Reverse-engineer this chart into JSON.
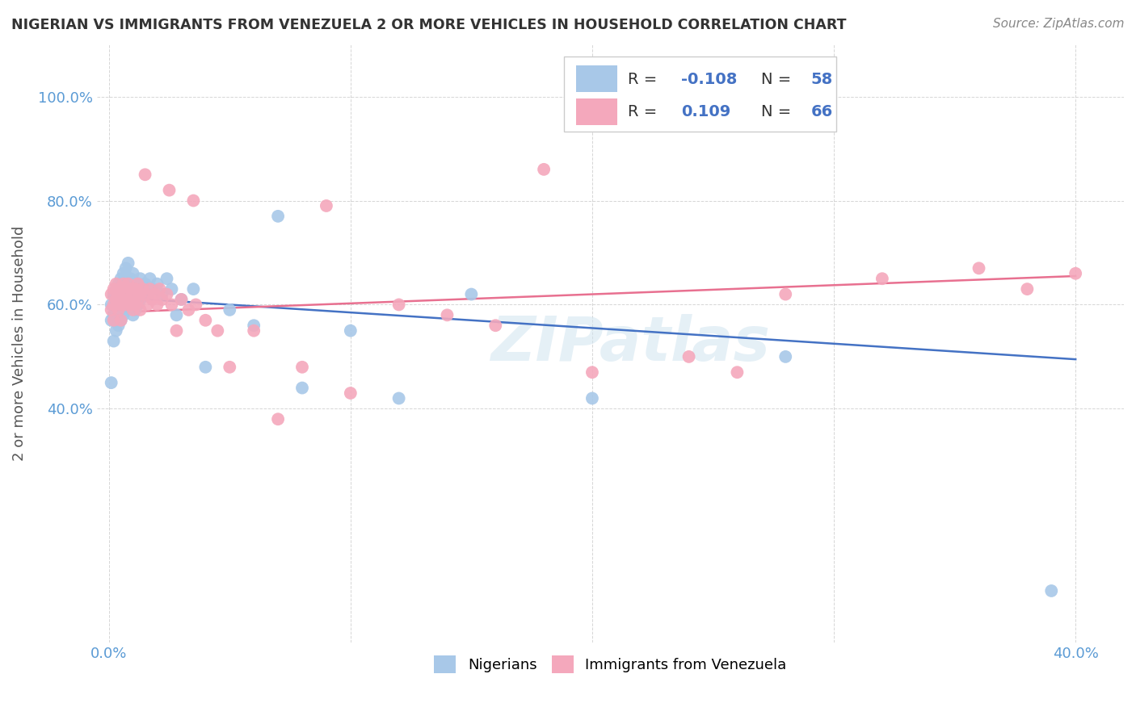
{
  "title": "NIGERIAN VS IMMIGRANTS FROM VENEZUELA 2 OR MORE VEHICLES IN HOUSEHOLD CORRELATION CHART",
  "source": "Source: ZipAtlas.com",
  "ylabel": "2 or more Vehicles in Household",
  "blue_color": "#a8c8e8",
  "pink_color": "#f4a8bc",
  "blue_line_color": "#4472c4",
  "pink_line_color": "#e87090",
  "xlim": [
    -0.005,
    0.42
  ],
  "ylim": [
    -0.05,
    1.1
  ],
  "nigerians_x": [
    0.001,
    0.001,
    0.001,
    0.002,
    0.002,
    0.002,
    0.003,
    0.003,
    0.003,
    0.004,
    0.004,
    0.004,
    0.005,
    0.005,
    0.005,
    0.006,
    0.006,
    0.006,
    0.007,
    0.007,
    0.007,
    0.008,
    0.008,
    0.008,
    0.009,
    0.009,
    0.01,
    0.01,
    0.01,
    0.011,
    0.011,
    0.012,
    0.012,
    0.013,
    0.013,
    0.014,
    0.015,
    0.016,
    0.017,
    0.018,
    0.02,
    0.022,
    0.024,
    0.026,
    0.028,
    0.03,
    0.035,
    0.04,
    0.05,
    0.06,
    0.07,
    0.08,
    0.1,
    0.12,
    0.15,
    0.2,
    0.28,
    0.39
  ],
  "nigerians_y": [
    0.6,
    0.57,
    0.45,
    0.62,
    0.58,
    0.53,
    0.63,
    0.59,
    0.55,
    0.64,
    0.6,
    0.56,
    0.65,
    0.61,
    0.57,
    0.66,
    0.62,
    0.58,
    0.67,
    0.63,
    0.59,
    0.68,
    0.64,
    0.6,
    0.65,
    0.61,
    0.66,
    0.62,
    0.58,
    0.63,
    0.59,
    0.64,
    0.6,
    0.65,
    0.61,
    0.63,
    0.64,
    0.62,
    0.65,
    0.63,
    0.64,
    0.62,
    0.65,
    0.63,
    0.58,
    0.61,
    0.63,
    0.48,
    0.59,
    0.56,
    0.77,
    0.44,
    0.55,
    0.42,
    0.62,
    0.42,
    0.5,
    0.05
  ],
  "venezuela_x": [
    0.001,
    0.001,
    0.002,
    0.002,
    0.002,
    0.003,
    0.003,
    0.004,
    0.004,
    0.005,
    0.005,
    0.005,
    0.006,
    0.006,
    0.007,
    0.007,
    0.008,
    0.008,
    0.009,
    0.009,
    0.01,
    0.01,
    0.011,
    0.011,
    0.012,
    0.012,
    0.013,
    0.013,
    0.014,
    0.015,
    0.016,
    0.017,
    0.018,
    0.019,
    0.02,
    0.021,
    0.022,
    0.024,
    0.026,
    0.028,
    0.03,
    0.033,
    0.036,
    0.04,
    0.045,
    0.05,
    0.06,
    0.07,
    0.08,
    0.1,
    0.12,
    0.14,
    0.16,
    0.2,
    0.24,
    0.28,
    0.32,
    0.36,
    0.38,
    0.4,
    0.015,
    0.025,
    0.035,
    0.09,
    0.18,
    0.26
  ],
  "venezuela_y": [
    0.62,
    0.59,
    0.63,
    0.6,
    0.57,
    0.64,
    0.61,
    0.62,
    0.59,
    0.63,
    0.6,
    0.57,
    0.64,
    0.61,
    0.63,
    0.6,
    0.64,
    0.61,
    0.63,
    0.6,
    0.62,
    0.59,
    0.63,
    0.6,
    0.64,
    0.61,
    0.62,
    0.59,
    0.63,
    0.62,
    0.6,
    0.63,
    0.61,
    0.62,
    0.6,
    0.63,
    0.61,
    0.62,
    0.6,
    0.55,
    0.61,
    0.59,
    0.6,
    0.57,
    0.55,
    0.48,
    0.55,
    0.38,
    0.48,
    0.43,
    0.6,
    0.58,
    0.56,
    0.47,
    0.5,
    0.62,
    0.65,
    0.67,
    0.63,
    0.66,
    0.85,
    0.82,
    0.8,
    0.79,
    0.86,
    0.47
  ],
  "nig_trend_x0": 0.0,
  "nig_trend_x1": 0.4,
  "nig_trend_y0": 0.615,
  "nig_trend_y1": 0.495,
  "ven_trend_x0": 0.0,
  "ven_trend_x1": 0.4,
  "ven_trend_y0": 0.585,
  "ven_trend_y1": 0.655
}
